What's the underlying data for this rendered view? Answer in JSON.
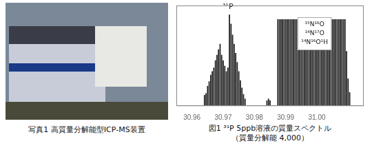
{
  "chart_data": {
    "type": "bar",
    "title": "図1 ³¹P 5ppb溶液の質量スペクトル",
    "subtitle": "（質量分解能 4,000）",
    "x": [
      30.964,
      30.9645,
      30.965,
      30.9655,
      30.966,
      30.9665,
      30.967,
      30.9675,
      30.968,
      30.9685,
      30.969,
      30.9695,
      30.97,
      30.9705,
      30.971,
      30.9715,
      30.972,
      30.9725,
      30.973,
      30.9735,
      30.974,
      30.9745,
      30.975,
      30.9755,
      30.976,
      30.9765,
      30.977,
      30.984,
      30.9845,
      30.985,
      30.9875,
      30.988,
      30.9885,
      30.989,
      30.9895,
      30.99,
      30.9905,
      30.991,
      30.9915,
      30.992,
      30.9925,
      30.993,
      30.9935,
      30.994,
      30.9945,
      30.995,
      30.9955,
      30.996,
      30.9965,
      30.997,
      30.9975,
      30.998,
      30.9985,
      30.999,
      30.9995,
      31.0,
      31.0005,
      31.001,
      31.0015,
      31.002,
      31.0025,
      31.003,
      31.0035,
      31.004,
      31.0045,
      31.005,
      31.0055,
      31.006,
      31.0065,
      31.007,
      31.0075,
      31.008,
      31.0085,
      31.009,
      31.0095,
      31.01,
      31.0105
    ],
    "values": [
      0.12,
      0.14,
      0.22,
      0.27,
      0.34,
      0.38,
      0.42,
      0.5,
      0.56,
      0.62,
      0.68,
      0.56,
      0.5,
      0.44,
      0.38,
      0.42,
      1.0,
      0.9,
      0.78,
      0.68,
      0.58,
      0.48,
      0.38,
      0.28,
      0.2,
      0.13,
      0.08,
      0.06,
      0.08,
      0.06,
      0.95,
      0.95,
      0.95,
      0.95,
      0.95,
      0.95,
      0.95,
      0.95,
      0.95,
      0.95,
      0.95,
      0.95,
      0.95,
      0.95,
      0.95,
      0.95,
      0.95,
      0.95,
      0.95,
      0.95,
      0.95,
      0.95,
      0.95,
      0.95,
      0.95,
      0.95,
      0.95,
      0.95,
      0.95,
      0.95,
      0.95,
      0.95,
      0.95,
      0.95,
      0.95,
      0.95,
      0.95,
      0.95,
      0.95,
      0.95,
      0.95,
      0.95,
      0.95,
      0.95,
      0.6,
      0.3,
      0.15
    ],
    "color": "#1a1a1a",
    "xlim": [
      30.955,
      31.015
    ],
    "xticks": [
      30.96,
      30.97,
      30.98,
      30.99,
      {
        "value": 31.0,
        "label": "31.00"
      }
    ],
    "ylim": [
      0,
      1.1
    ],
    "tick_labels": "x",
    "grid": false,
    "annotations": [
      {
        "text": "³¹P",
        "x": 30.9715,
        "y": 1.04
      },
      {
        "lines": [
          "¹⁵N¹⁶O",
          "¹⁴N¹⁷O",
          "¹⁴N¹⁶O¹H"
        ]
      },
      {
        "text": "写真1 高質量分解能型ICP-MS装置"
      }
    ]
  }
}
